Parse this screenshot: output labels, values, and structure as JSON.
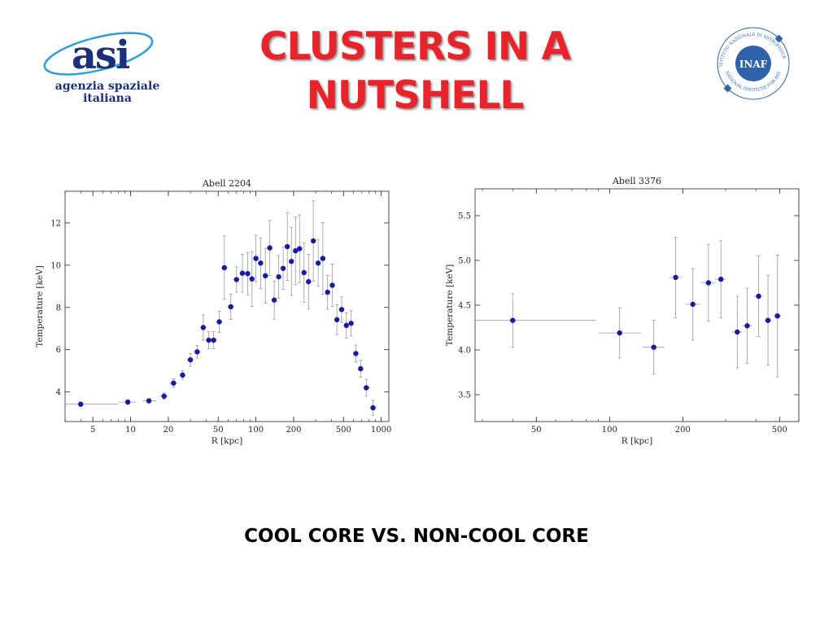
{
  "slide": {
    "title_line1": "CLUSTERS IN A",
    "title_line2": "NUTSHELL",
    "subtitle": "COOL CORE VS. NON-COOL CORE",
    "title_color": "#e8232a"
  },
  "logos": {
    "asi": {
      "mark": "asi",
      "line1": "agenzia spaziale",
      "line2": "italiana",
      "color": "#1c2f7a",
      "orbit_color": "#2a9fd8"
    },
    "inaf": {
      "center": "INAF",
      "ring_top": "ISTITUTO NAZIONALE DI ASTROFISICA",
      "ring_bottom": "NATIONAL INSTITUTE FOR ASTROPHYSICS",
      "color": "#2f62a8"
    }
  },
  "chart_data": [
    {
      "type": "scatter",
      "title": "Abell 2204",
      "xlabel": "R [kpc]",
      "ylabel": "Temperature [keV]",
      "xscale": "log",
      "xlim": [
        3,
        1150
      ],
      "ylim": [
        2.6,
        13.5
      ],
      "xticks": [
        5,
        10,
        20,
        50,
        100,
        200,
        500,
        1000
      ],
      "yticks": [
        4,
        6,
        8,
        10,
        12
      ],
      "marker_color": "#1a1aa0",
      "points": [
        {
          "x": 4,
          "y": 3.42,
          "xerr": [
            3,
            8
          ],
          "yerr": 0.1
        },
        {
          "x": 9.5,
          "y": 3.52,
          "xerr": [
            8,
            11
          ],
          "yerr": 0.1
        },
        {
          "x": 14,
          "y": 3.58,
          "xerr": [
            12.5,
            16
          ],
          "yerr": 0.1
        },
        {
          "x": 18.5,
          "y": 3.8,
          "xerr": [
            17,
            20
          ],
          "yerr": 0.15
        },
        {
          "x": 22,
          "y": 4.42,
          "xerr": [
            20.5,
            23.5
          ],
          "yerr": 0.2
        },
        {
          "x": 26,
          "y": 4.8,
          "xerr": [
            24.5,
            27.5
          ],
          "yerr": 0.2
        },
        {
          "x": 30,
          "y": 5.52,
          "xerr": [
            28,
            32
          ],
          "yerr": 0.3
        },
        {
          "x": 34,
          "y": 5.9,
          "xerr": [
            32,
            36
          ],
          "yerr": 0.3
        },
        {
          "x": 38,
          "y": 7.05,
          "xerr": [
            36,
            40
          ],
          "yerr": 0.6
        },
        {
          "x": 42,
          "y": 6.45,
          "xerr": [
            40,
            44
          ],
          "yerr": 0.4
        },
        {
          "x": 46,
          "y": 6.45,
          "xerr": [
            44,
            48
          ],
          "yerr": 0.4
        },
        {
          "x": 51,
          "y": 7.32,
          "xerr": [
            48,
            54
          ],
          "yerr": 0.5
        },
        {
          "x": 56,
          "y": 9.88,
          "xerr": [
            53,
            59
          ],
          "yerr": 1.5
        },
        {
          "x": 63,
          "y": 8.03,
          "xerr": [
            59,
            67
          ],
          "yerr": 0.6
        },
        {
          "x": 70,
          "y": 9.32,
          "xerr": [
            66,
            74
          ],
          "yerr": 0.6
        },
        {
          "x": 78,
          "y": 9.62,
          "xerr": [
            74,
            82
          ],
          "yerr": 0.9
        },
        {
          "x": 86,
          "y": 9.6,
          "xerr": [
            82,
            90
          ],
          "yerr": 1.0
        },
        {
          "x": 93,
          "y": 9.35,
          "xerr": [
            89,
            97
          ],
          "yerr": 1.3
        },
        {
          "x": 100,
          "y": 10.32,
          "xerr": [
            96,
            104
          ],
          "yerr": 1.1
        },
        {
          "x": 109,
          "y": 10.1,
          "xerr": [
            104,
            114
          ],
          "yerr": 1.2
        },
        {
          "x": 119,
          "y": 9.5,
          "xerr": [
            114,
            124
          ],
          "yerr": 1.3
        },
        {
          "x": 129,
          "y": 10.82,
          "xerr": [
            124,
            134
          ],
          "yerr": 1.3
        },
        {
          "x": 140,
          "y": 8.35,
          "xerr": [
            134,
            146
          ],
          "yerr": 0.9
        },
        {
          "x": 152,
          "y": 9.45,
          "xerr": [
            146,
            158
          ],
          "yerr": 1.0
        },
        {
          "x": 165,
          "y": 9.85,
          "xerr": [
            158,
            172
          ],
          "yerr": 1.0
        },
        {
          "x": 178,
          "y": 10.88,
          "xerr": [
            172,
            185
          ],
          "yerr": 1.6
        },
        {
          "x": 192,
          "y": 10.18,
          "xerr": [
            185,
            199
          ],
          "yerr": 1.6
        },
        {
          "x": 207,
          "y": 10.68,
          "xerr": [
            199,
            215
          ],
          "yerr": 1.6
        },
        {
          "x": 223,
          "y": 10.78,
          "xerr": [
            215,
            231
          ],
          "yerr": 1.6
        },
        {
          "x": 242,
          "y": 9.65,
          "xerr": [
            232,
            252
          ],
          "yerr": 1.4
        },
        {
          "x": 263,
          "y": 9.22,
          "xerr": [
            252,
            274
          ],
          "yerr": 1.3
        },
        {
          "x": 287,
          "y": 11.15,
          "xerr": [
            275,
            299
          ],
          "yerr": 1.9
        },
        {
          "x": 314,
          "y": 10.1,
          "xerr": [
            300,
            328
          ],
          "yerr": 1.1
        },
        {
          "x": 342,
          "y": 10.32,
          "xerr": [
            328,
            356
          ],
          "yerr": 1.7
        },
        {
          "x": 373,
          "y": 8.72,
          "xerr": [
            356,
            390
          ],
          "yerr": 0.8
        },
        {
          "x": 407,
          "y": 9.05,
          "xerr": [
            390,
            425
          ],
          "yerr": 1.0
        },
        {
          "x": 443,
          "y": 7.42,
          "xerr": [
            425,
            462
          ],
          "yerr": 0.7
        },
        {
          "x": 483,
          "y": 7.9,
          "xerr": [
            462,
            505
          ],
          "yerr": 0.6
        },
        {
          "x": 527,
          "y": 7.15,
          "xerr": [
            505,
            550
          ],
          "yerr": 0.6
        },
        {
          "x": 575,
          "y": 7.25,
          "xerr": [
            550,
            600
          ],
          "yerr": 0.6
        },
        {
          "x": 627,
          "y": 5.82,
          "xerr": [
            600,
            655
          ],
          "yerr": 0.4
        },
        {
          "x": 685,
          "y": 5.1,
          "xerr": [
            655,
            715
          ],
          "yerr": 0.4
        },
        {
          "x": 760,
          "y": 4.2,
          "xerr": [
            715,
            810
          ],
          "yerr": 0.4
        },
        {
          "x": 860,
          "y": 3.25,
          "xerr": [
            810,
            920
          ],
          "yerr": 0.35
        }
      ]
    },
    {
      "type": "scatter",
      "title": "Abell 3376",
      "xlabel": "R [kpc]",
      "ylabel": "Temperature [keV]",
      "xscale": "log",
      "xlim": [
        28,
        600
      ],
      "ylim": [
        3.2,
        5.8
      ],
      "xticks": [
        50,
        100,
        200,
        500
      ],
      "yticks": [
        3.5,
        4.0,
        4.5,
        5.0,
        5.5
      ],
      "yticklabels": [
        "3.5",
        "4.0",
        "4.5",
        "5.0",
        "5.5"
      ],
      "marker_color": "#1a1aa0",
      "points": [
        {
          "x": 40,
          "y": 4.33,
          "xerr": [
            28,
            88
          ],
          "yerr": 0.3
        },
        {
          "x": 110,
          "y": 4.19,
          "xerr": [
            90,
            135
          ],
          "yerr": 0.28
        },
        {
          "x": 152,
          "y": 4.03,
          "xerr": [
            137,
            168
          ],
          "yerr": 0.3
        },
        {
          "x": 187,
          "y": 4.81,
          "xerr": [
            176,
            198
          ],
          "yerr": 0.45
        },
        {
          "x": 220,
          "y": 4.51,
          "xerr": [
            205,
            236
          ],
          "yerr": 0.4
        },
        {
          "x": 255,
          "y": 4.75,
          "xerr": [
            237,
            272
          ],
          "yerr": 0.43
        },
        {
          "x": 287,
          "y": 4.79,
          "xerr": [
            272,
            302
          ],
          "yerr": 0.43
        },
        {
          "x": 335,
          "y": 4.2,
          "xerr": [
            318,
            352
          ],
          "yerr": 0.4
        },
        {
          "x": 368,
          "y": 4.27,
          "xerr": [
            352,
            385
          ],
          "yerr": 0.42
        },
        {
          "x": 410,
          "y": 4.6,
          "xerr": [
            392,
            428
          ],
          "yerr": 0.45
        },
        {
          "x": 448,
          "y": 4.33,
          "xerr": [
            432,
            464
          ],
          "yerr": 0.5
        },
        {
          "x": 490,
          "y": 4.38,
          "xerr": [
            472,
            510
          ],
          "yerr": 0.68
        }
      ]
    }
  ]
}
